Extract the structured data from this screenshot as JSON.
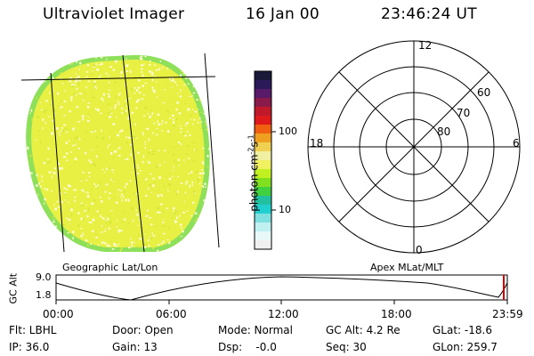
{
  "header": {
    "instrument": "Ultraviolet Imager",
    "date": "16 Jan 00",
    "time": "23:46:24 UT"
  },
  "colors": {
    "disk_fill": "#e8f044",
    "disk_rim": "#8ee05a",
    "speckle": "#fbfbcf",
    "grid_line": "#000000"
  },
  "colorbar": {
    "unit_main": "photon cm",
    "unit_exp1": "-2",
    "unit_s": "s",
    "unit_exp2": "-1",
    "tick_100": "100",
    "tick_10": "10",
    "colors": [
      "#1a1a38",
      "#2a1a5a",
      "#5a1a6a",
      "#8a1a4a",
      "#c01a2a",
      "#e01a1a",
      "#f06010",
      "#f0a020",
      "#f0d050",
      "#f0f0a0",
      "#f0f060",
      "#c0f020",
      "#80e020",
      "#40d040",
      "#20c0a0",
      "#20d0d0",
      "#80e0e0",
      "#c0f0f0",
      "#e8f8f8",
      "#f0f0f0"
    ]
  },
  "polar": {
    "label_12": "12",
    "label_18": "18",
    "label_6": "6",
    "label_0": "0",
    "ring_60": "60",
    "ring_70": "70",
    "ring_80": "80"
  },
  "image_labels": {
    "left": "Geographic Lat/Lon",
    "right": "Apex MLat/MLT"
  },
  "timeline": {
    "ylabel": "GC Alt",
    "ytick_top": "9.0",
    "ytick_bottom": "1.8",
    "xticks": [
      "00:00",
      "06:00",
      "12:00",
      "18:00",
      "23:59"
    ],
    "marker_color": "#e00000"
  },
  "footer": {
    "flt": "Flt: LBHL",
    "door": "Door: Open",
    "mode": "Mode: Normal",
    "gcalt": "GC Alt: 4.2 Re",
    "glat": "GLat: -18.6",
    "ip": "IP: 36.0",
    "gain": "Gain: 13",
    "dsp": "Dsp:    -0.0",
    "seq": "Seq: 30",
    "glon": "GLon: 259.7"
  }
}
